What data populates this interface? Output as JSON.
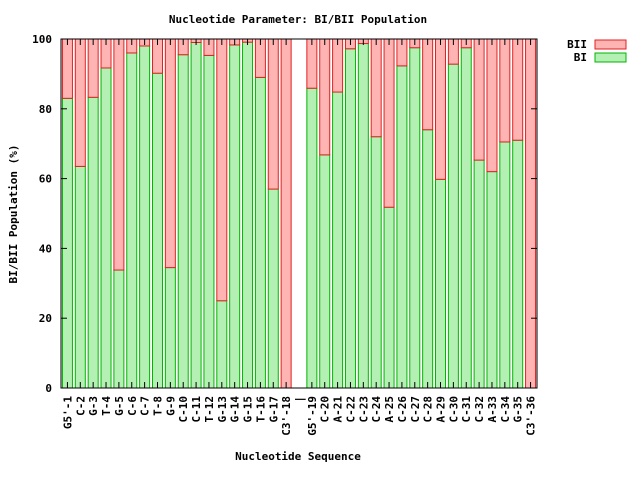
{
  "chart_data": {
    "type": "bar",
    "stacked": true,
    "title": "Nucleotide Parameter: BI/BII Population",
    "xlabel": "Nucleotide Sequence",
    "ylabel": "BI/BII Population (%)",
    "ylim": [
      0,
      100
    ],
    "yticks": [
      0,
      20,
      40,
      60,
      80,
      100
    ],
    "grid": false,
    "legend_position": "top-right, outside plot",
    "categories": [
      "G5'-1",
      "C-2",
      "G-3",
      "T-4",
      "G-5",
      "C-6",
      "C-7",
      "T-8",
      "G-9",
      "C-10",
      "C-11",
      "T-12",
      "G-13",
      "G-14",
      "G-15",
      "T-16",
      "G-17",
      "C3'-18",
      "|",
      "G5'-19",
      "C-20",
      "A-21",
      "C-22",
      "C-23",
      "C-24",
      "A-25",
      "C-26",
      "C-27",
      "C-28",
      "A-29",
      "C-30",
      "C-31",
      "C-32",
      "A-33",
      "C-34",
      "G-35",
      "C3'-36"
    ],
    "gap_categories": [
      "|"
    ],
    "series": [
      {
        "name": "BI",
        "color": "#b4f0b4",
        "stroke": "#00b400",
        "values": [
          83,
          63.5,
          83.3,
          91.7,
          33.8,
          96,
          98,
          90.2,
          34.5,
          95.5,
          99,
          95.3,
          25,
          98.3,
          99.1,
          89,
          57,
          0,
          null,
          85.9,
          66.8,
          84.8,
          97.2,
          98.7,
          72,
          51.8,
          92.3,
          97.5,
          74,
          59.8,
          92.8,
          97.5,
          65.3,
          62,
          70.5,
          71,
          0
        ]
      },
      {
        "name": "BII",
        "color": "#ffb4b4",
        "stroke": "#e02020",
        "values": [
          17,
          36.5,
          16.7,
          8.3,
          66.2,
          4,
          2,
          9.8,
          65.5,
          4.5,
          1,
          4.7,
          75,
          1.7,
          0.9,
          11,
          43,
          100,
          null,
          14.1,
          33.2,
          15.2,
          2.8,
          1.3,
          28,
          48.2,
          7.7,
          2.5,
          26,
          40.2,
          7.2,
          2.5,
          34.7,
          38,
          29.5,
          29,
          100
        ]
      }
    ]
  }
}
